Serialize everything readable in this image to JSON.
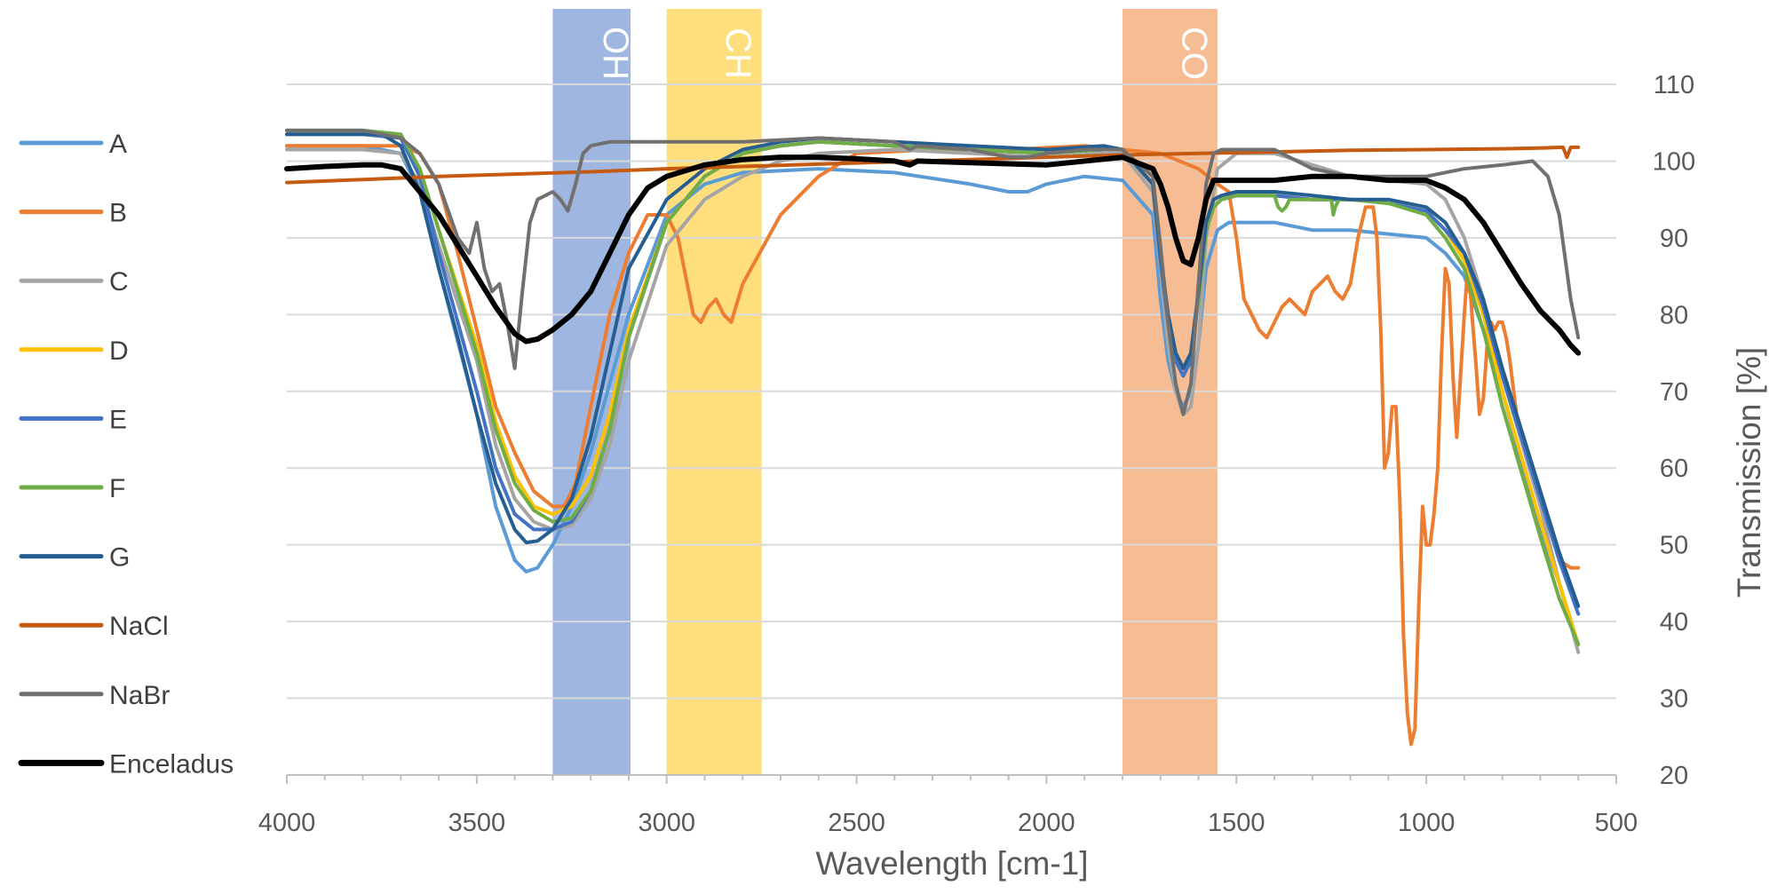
{
  "chart_data": {
    "type": "line",
    "title": "",
    "xlabel": "Wavelength [cm-1]",
    "ylabel": "Transmission [%]",
    "xlim": [
      4000,
      500
    ],
    "ylim": [
      20,
      110
    ],
    "x_ticks": [
      4000,
      3500,
      3000,
      2500,
      2000,
      1500,
      1000,
      500
    ],
    "y_ticks": [
      20,
      30,
      40,
      50,
      60,
      70,
      80,
      90,
      100,
      110
    ],
    "x_axis_reversed": true,
    "y_axis_position": "right",
    "grid": {
      "horizontal": true,
      "vertical": false
    },
    "legend_position": "left",
    "bands": [
      {
        "label": "OH",
        "x_from": 3300,
        "x_to": 3095,
        "color": "#8EA9DB"
      },
      {
        "label": "CH",
        "x_from": 3000,
        "x_to": 2750,
        "color": "#FFD966"
      },
      {
        "label": "CO",
        "x_from": 1800,
        "x_to": 1550,
        "color": "#F4B183"
      }
    ],
    "series": [
      {
        "name": "A",
        "color": "#5B9BD5",
        "width": 4,
        "x": [
          4000,
          3800,
          3700,
          3650,
          3600,
          3500,
          3450,
          3400,
          3370,
          3340,
          3300,
          3250,
          3200,
          3100,
          3000,
          2900,
          2800,
          2600,
          2400,
          2200,
          2100,
          2050,
          2000,
          1900,
          1800,
          1720,
          1700,
          1680,
          1660,
          1640,
          1620,
          1600,
          1580,
          1550,
          1520,
          1500,
          1400,
          1300,
          1200,
          1100,
          1000,
          950,
          900,
          850,
          800,
          700,
          650,
          600
        ],
        "y": [
          102,
          102,
          101,
          96,
          86,
          67,
          55,
          48,
          46.5,
          47,
          50,
          55,
          62,
          80,
          93,
          97,
          98.5,
          99,
          98.5,
          97,
          96,
          96,
          97,
          98,
          97.5,
          93,
          82,
          74,
          70,
          68,
          70,
          76,
          86,
          91,
          92,
          92,
          92,
          91,
          91,
          90.5,
          90,
          88,
          85,
          78,
          70,
          52,
          45,
          37
        ]
      },
      {
        "name": "B",
        "color": "#ED7D31",
        "width": 4,
        "x": [
          4000,
          3800,
          3700,
          3650,
          3600,
          3550,
          3500,
          3450,
          3400,
          3350,
          3300,
          3270,
          3240,
          3200,
          3150,
          3100,
          3050,
          3000,
          2970,
          2950,
          2930,
          2910,
          2890,
          2870,
          2850,
          2830,
          2800,
          2700,
          2600,
          2500,
          2300,
          2100,
          1900,
          1800,
          1700,
          1650,
          1600,
          1550,
          1520,
          1500,
          1480,
          1460,
          1440,
          1420,
          1400,
          1380,
          1360,
          1340,
          1320,
          1300,
          1280,
          1260,
          1240,
          1220,
          1200,
          1180,
          1160,
          1140,
          1130,
          1120,
          1110,
          1100,
          1090,
          1080,
          1070,
          1060,
          1050,
          1040,
          1030,
          1020,
          1010,
          1000,
          990,
          980,
          970,
          960,
          950,
          940,
          930,
          920,
          910,
          900,
          890,
          880,
          870,
          860,
          850,
          840,
          830,
          820,
          810,
          800,
          790,
          780,
          760,
          700,
          650,
          620,
          600
        ],
        "y": [
          102,
          102,
          102,
          101,
          97,
          88,
          78,
          68,
          62,
          57,
          55,
          55,
          58,
          68,
          80,
          88,
          93,
          93,
          90,
          85,
          80,
          79,
          81,
          82,
          80,
          79,
          84,
          93,
          98,
          101,
          101.5,
          101.5,
          102,
          101.5,
          101,
          100,
          99,
          97,
          96,
          90,
          82,
          80,
          78,
          77,
          79,
          81,
          82,
          81,
          80,
          83,
          84,
          85,
          83,
          82,
          84,
          90,
          94,
          94,
          90,
          78,
          60,
          62,
          68,
          68,
          56,
          38,
          28,
          24,
          26,
          42,
          55,
          50,
          50,
          54,
          60,
          75,
          86,
          84,
          72,
          64,
          72,
          80,
          87,
          80,
          74,
          67,
          69,
          76,
          79,
          78,
          79,
          79,
          77,
          74,
          66,
          56,
          48,
          47,
          47
        ]
      },
      {
        "name": "C",
        "color": "#A5A5A5",
        "width": 4,
        "x": [
          4000,
          3800,
          3700,
          3650,
          3600,
          3500,
          3450,
          3400,
          3350,
          3300,
          3250,
          3200,
          3150,
          3100,
          3000,
          2900,
          2800,
          2700,
          2600,
          2400,
          2200,
          2000,
          1850,
          1800,
          1720,
          1700,
          1680,
          1660,
          1640,
          1620,
          1600,
          1580,
          1550,
          1500,
          1450,
          1400,
          1300,
          1200,
          1100,
          1000,
          950,
          900,
          850,
          800,
          700,
          650,
          600
        ],
        "y": [
          101.5,
          101.5,
          101,
          97,
          89,
          74,
          63,
          56,
          53,
          52,
          52.5,
          56,
          63,
          74,
          89,
          95,
          98,
          100,
          101,
          101.5,
          101,
          100.5,
          101,
          101,
          96,
          86,
          76,
          70,
          67,
          68,
          76,
          90,
          99,
          101,
          101,
          101,
          99.5,
          98,
          97.5,
          97,
          95,
          90,
          82,
          72,
          55,
          45,
          36
        ]
      },
      {
        "name": "D",
        "color": "#FFC000",
        "width": 4,
        "x": [
          4000,
          3800,
          3700,
          3650,
          3600,
          3500,
          3450,
          3400,
          3350,
          3300,
          3250,
          3200,
          3150,
          3100,
          3000,
          2900,
          2800,
          2700,
          2600,
          2400,
          2200,
          2000,
          1850,
          1800,
          1720,
          1700,
          1680,
          1660,
          1640,
          1620,
          1600,
          1580,
          1560,
          1540,
          1500,
          1400,
          1300,
          1200,
          1100,
          1000,
          950,
          900,
          850,
          800,
          700,
          650,
          600
        ],
        "y": [
          103.5,
          103.5,
          103,
          99,
          91,
          76,
          66,
          59,
          55,
          54,
          55,
          59,
          67,
          78,
          92,
          98,
          101,
          102,
          102.5,
          102,
          101.5,
          101,
          101.5,
          101.5,
          97,
          88,
          80,
          75,
          73,
          75,
          82,
          91,
          94,
          95,
          95.5,
          95.5,
          95,
          95,
          94.5,
          93.5,
          91,
          87,
          80,
          70,
          53,
          45,
          37
        ]
      },
      {
        "name": "E",
        "color": "#4472C4",
        "width": 4,
        "x": [
          4000,
          3800,
          3700,
          3650,
          3600,
          3500,
          3450,
          3400,
          3350,
          3300,
          3250,
          3200,
          3150,
          3100,
          3000,
          2900,
          2800,
          2700,
          2600,
          2400,
          2200,
          2000,
          1850,
          1800,
          1720,
          1700,
          1680,
          1660,
          1640,
          1620,
          1600,
          1580,
          1560,
          1540,
          1500,
          1400,
          1300,
          1200,
          1100,
          1000,
          950,
          900,
          850,
          800,
          700,
          650,
          600
        ],
        "y": [
          103.5,
          103.5,
          103,
          98,
          88,
          70,
          60,
          54,
          52,
          52,
          53,
          57,
          65,
          77,
          92,
          98,
          101,
          102,
          102.5,
          102,
          101.5,
          101,
          101.5,
          101.5,
          97,
          87,
          79,
          74,
          72,
          74,
          82,
          91,
          94,
          95,
          95.5,
          95.5,
          95,
          95,
          94.5,
          93.5,
          91,
          88,
          81,
          72,
          56,
          48,
          41
        ]
      },
      {
        "name": "F",
        "color": "#70AD47",
        "width": 4,
        "x": [
          4000,
          3800,
          3700,
          3650,
          3600,
          3500,
          3450,
          3400,
          3350,
          3300,
          3250,
          3200,
          3150,
          3100,
          3000,
          2900,
          2800,
          2700,
          2600,
          2400,
          2200,
          2000,
          1850,
          1800,
          1720,
          1700,
          1680,
          1660,
          1640,
          1620,
          1600,
          1580,
          1560,
          1540,
          1500,
          1400,
          1390,
          1380,
          1370,
          1360,
          1300,
          1250,
          1245,
          1240,
          1230,
          1200,
          1100,
          1000,
          950,
          900,
          850,
          800,
          700,
          650,
          600
        ],
        "y": [
          104,
          104,
          103.5,
          99,
          91,
          75,
          65,
          58,
          54.5,
          53,
          53.5,
          57,
          65,
          77,
          92,
          98,
          101,
          102,
          102.5,
          102,
          101.5,
          101,
          101.5,
          101.5,
          97,
          88,
          80,
          75,
          73,
          75,
          82,
          91,
          94,
          95,
          95.5,
          95.5,
          94,
          93.5,
          94,
          95,
          95,
          95,
          93,
          94,
          95,
          95,
          94.5,
          93,
          90,
          86,
          78,
          68,
          51,
          43,
          37
        ]
      },
      {
        "name": "G",
        "color": "#255E91",
        "width": 4,
        "x": [
          4000,
          3800,
          3750,
          3700,
          3650,
          3600,
          3550,
          3500,
          3450,
          3400,
          3370,
          3340,
          3300,
          3250,
          3200,
          3150,
          3100,
          3000,
          2900,
          2800,
          2700,
          2600,
          2400,
          2200,
          2000,
          1850,
          1800,
          1720,
          1700,
          1680,
          1660,
          1640,
          1620,
          1600,
          1580,
          1560,
          1540,
          1500,
          1400,
          1300,
          1200,
          1100,
          1000,
          950,
          900,
          850,
          800,
          700,
          650,
          600
        ],
        "y": [
          103.5,
          103.5,
          103.5,
          102,
          96,
          86,
          77,
          67,
          58,
          52,
          50.3,
          50.5,
          52,
          56,
          64,
          75,
          86,
          95,
          99,
          101.5,
          102.5,
          103,
          102.5,
          102,
          101.5,
          102,
          101.5,
          97,
          88,
          80,
          75,
          73,
          75,
          83,
          92,
          95,
          95.5,
          96,
          96,
          95.5,
          95,
          95,
          94,
          92,
          88,
          82,
          73,
          57,
          49,
          42
        ]
      },
      {
        "name": "NaCl",
        "color": "#C55A11",
        "width": 4,
        "x": [
          4000,
          3800,
          3600,
          3400,
          3200,
          3000,
          2800,
          2600,
          2400,
          2200,
          2000,
          1800,
          1600,
          1400,
          1200,
          1000,
          800,
          700,
          640,
          630,
          620,
          600
        ],
        "y": [
          97.2,
          97.6,
          98,
          98.3,
          98.6,
          99,
          99.3,
          99.6,
          99.9,
          100.2,
          100.5,
          100.8,
          101,
          101.2,
          101.4,
          101.5,
          101.6,
          101.7,
          101.8,
          100.5,
          101.8,
          101.8
        ]
      },
      {
        "name": "NaBr",
        "color": "#707070",
        "width": 4,
        "x": [
          4000,
          3800,
          3700,
          3650,
          3600,
          3550,
          3520,
          3500,
          3480,
          3460,
          3440,
          3420,
          3400,
          3380,
          3360,
          3340,
          3300,
          3280,
          3260,
          3240,
          3230,
          3220,
          3200,
          3150,
          3100,
          3000,
          2800,
          2600,
          2400,
          2360,
          2340,
          2200,
          2100,
          2050,
          2000,
          1900,
          1800,
          1720,
          1700,
          1680,
          1660,
          1640,
          1620,
          1600,
          1580,
          1560,
          1540,
          1500,
          1400,
          1300,
          1200,
          1100,
          1000,
          900,
          800,
          720,
          680,
          650,
          620,
          600
        ],
        "y": [
          104,
          104,
          103,
          101,
          97,
          90,
          88,
          92,
          86,
          83,
          84,
          79,
          73,
          83,
          92,
          95,
          96,
          95,
          93.5,
          97,
          99,
          101,
          102,
          102.5,
          102.5,
          102.5,
          102.5,
          103,
          102.5,
          101.5,
          102,
          101.5,
          100.5,
          100.5,
          101,
          101.5,
          101.5,
          98,
          89,
          79,
          71,
          67,
          71,
          84,
          97,
          101,
          101.5,
          101.5,
          101.5,
          99,
          98,
          98,
          98,
          99,
          99.5,
          100,
          98,
          93,
          82,
          77
        ]
      },
      {
        "name": "Enceladus",
        "color": "#000000",
        "width": 6,
        "x": [
          4000,
          3900,
          3800,
          3750,
          3700,
          3650,
          3600,
          3550,
          3500,
          3450,
          3400,
          3370,
          3340,
          3300,
          3250,
          3200,
          3150,
          3100,
          3050,
          3000,
          2900,
          2800,
          2700,
          2600,
          2500,
          2400,
          2360,
          2340,
          2200,
          2000,
          1800,
          1720,
          1700,
          1680,
          1660,
          1640,
          1620,
          1600,
          1580,
          1560,
          1540,
          1500,
          1400,
          1300,
          1200,
          1100,
          1050,
          1000,
          950,
          900,
          850,
          800,
          750,
          700,
          650,
          620,
          600
        ],
        "y": [
          99,
          99.3,
          99.5,
          99.5,
          99,
          96,
          93,
          89,
          85,
          81,
          77.5,
          76.5,
          76.8,
          78,
          80,
          83,
          88,
          93,
          96.5,
          98,
          99.5,
          100.2,
          100.5,
          100.5,
          100.3,
          100,
          99.5,
          100,
          99.8,
          99.5,
          100.5,
          99,
          97,
          94,
          90,
          87,
          86.5,
          90,
          95,
          97.5,
          97.5,
          97.5,
          97.5,
          98,
          98,
          97.5,
          97.5,
          97.5,
          96.5,
          95,
          92,
          88,
          84,
          80.5,
          78,
          76,
          75
        ]
      }
    ]
  }
}
